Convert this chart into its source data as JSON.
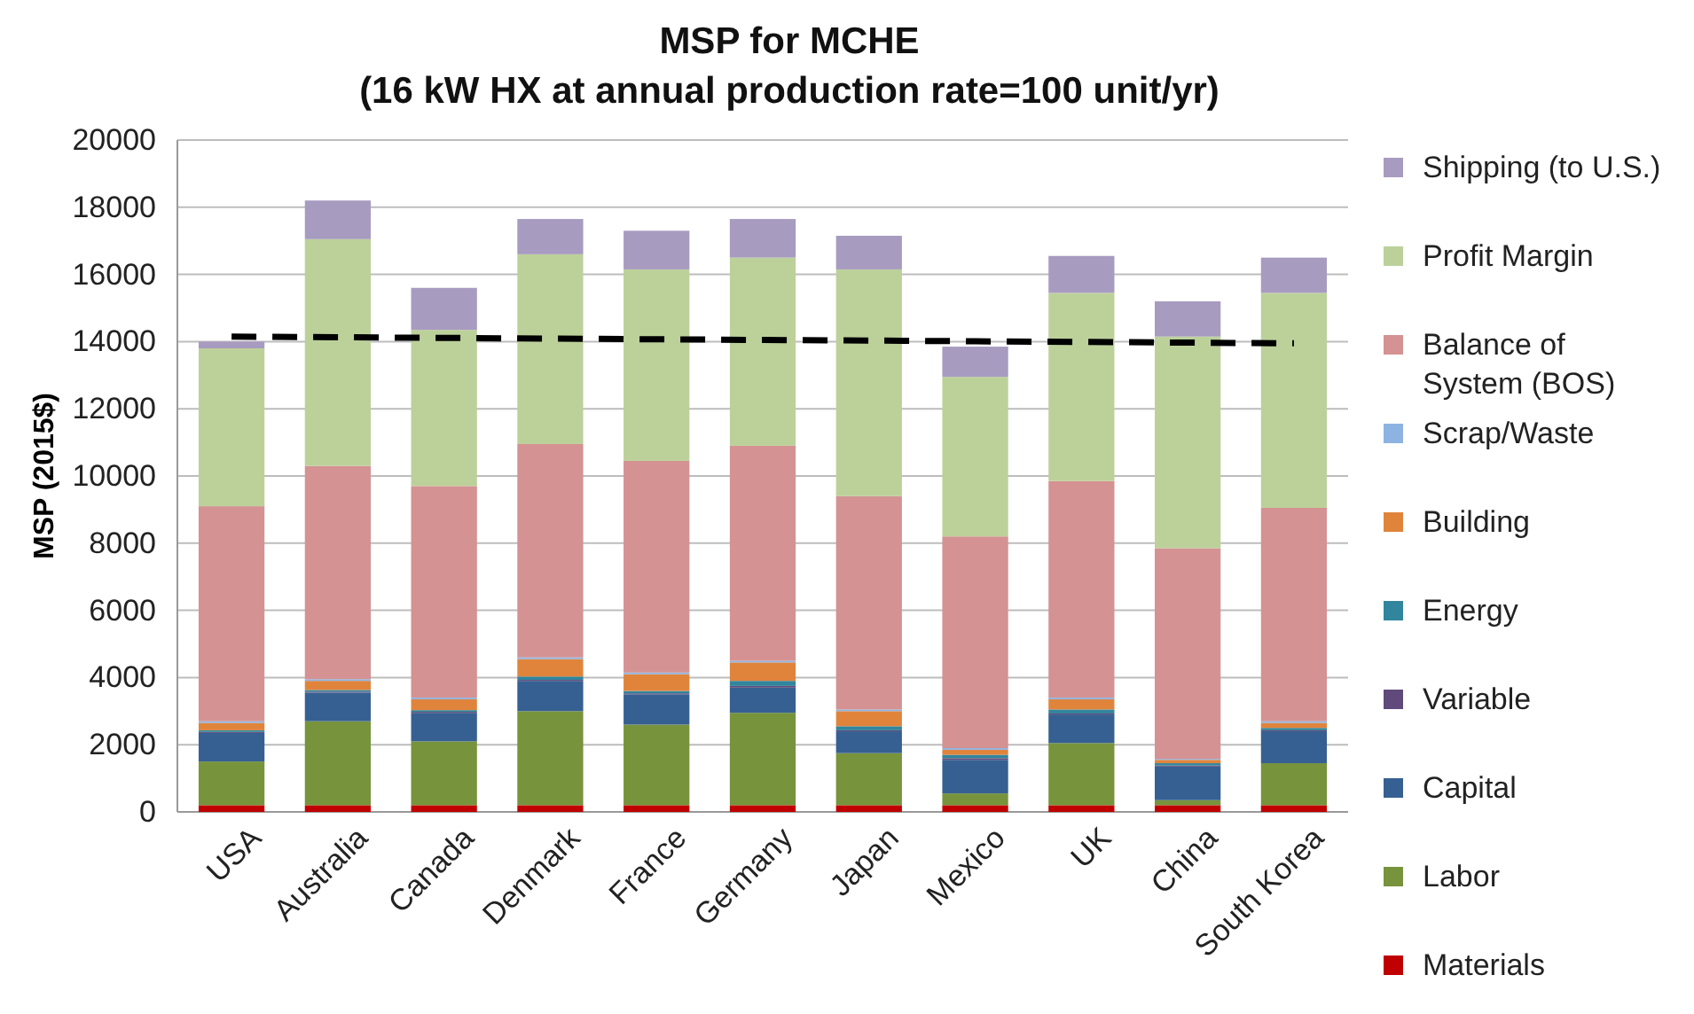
{
  "chart_data": {
    "type": "bar",
    "title": "MSP for MCHE",
    "subtitle": "(16 kW HX at annual production rate=100 unit/yr)",
    "ylabel": "MSP (2015$)",
    "categories": [
      "USA",
      "Australia",
      "Canada",
      "Denmark",
      "France",
      "Germany",
      "Japan",
      "Mexico",
      "UK",
      "China",
      "South Korea"
    ],
    "stacked": true,
    "ylim": [
      0,
      20000
    ],
    "yticks": [
      0,
      2000,
      4000,
      6000,
      8000,
      10000,
      12000,
      14000,
      16000,
      18000,
      20000
    ],
    "grid": "y",
    "legend": "right",
    "series": [
      {
        "name": "Materials",
        "color": "#c00000",
        "values": [
          200,
          200,
          200,
          200,
          200,
          200,
          200,
          200,
          200,
          200,
          200
        ]
      },
      {
        "name": "Labor",
        "color": "#77933c",
        "values": [
          1300,
          2500,
          1900,
          2800,
          2400,
          2750,
          1550,
          350,
          1850,
          150,
          1250
        ]
      },
      {
        "name": "Capital",
        "color": "#366092",
        "values": [
          850,
          850,
          850,
          900,
          900,
          750,
          650,
          1000,
          850,
          1000,
          950
        ]
      },
      {
        "name": "Variable",
        "color": "#604a7b",
        "values": [
          30,
          30,
          30,
          30,
          30,
          50,
          30,
          50,
          30,
          30,
          30
        ]
      },
      {
        "name": "Energy",
        "color": "#31859c",
        "values": [
          50,
          50,
          50,
          100,
          70,
          150,
          120,
          100,
          120,
          70,
          70
        ]
      },
      {
        "name": "Building",
        "color": "#e0843c",
        "values": [
          220,
          270,
          320,
          520,
          500,
          550,
          450,
          150,
          300,
          100,
          150
        ]
      },
      {
        "name": "Scrap/Waste",
        "color": "#8db3e2",
        "values": [
          50,
          50,
          50,
          50,
          50,
          50,
          50,
          50,
          50,
          30,
          50
        ]
      },
      {
        "name": "Balance of System (BOS)",
        "color": "#d49292",
        "values": [
          6400,
          6350,
          6300,
          6350,
          6300,
          6400,
          6350,
          6300,
          6450,
          6270,
          6350
        ]
      },
      {
        "name": "Profit Margin",
        "color": "#bcd19a",
        "values": [
          4700,
          6750,
          4650,
          5650,
          5700,
          5600,
          6750,
          4750,
          5600,
          6300,
          6400
        ]
      },
      {
        "name": "Shipping (to U.S.)",
        "color": "#a89bc0",
        "values": [
          200,
          1150,
          1250,
          1050,
          1150,
          1150,
          1000,
          900,
          1100,
          1050,
          1050
        ]
      },
      {
        "type": "line",
        "color": "#000000",
        "line_style": "dashed",
        "marker": "none",
        "values": [
          14150,
          14130,
          14110,
          14090,
          14070,
          14050,
          14030,
          14010,
          13990,
          13970,
          13950
        ]
      }
    ]
  }
}
